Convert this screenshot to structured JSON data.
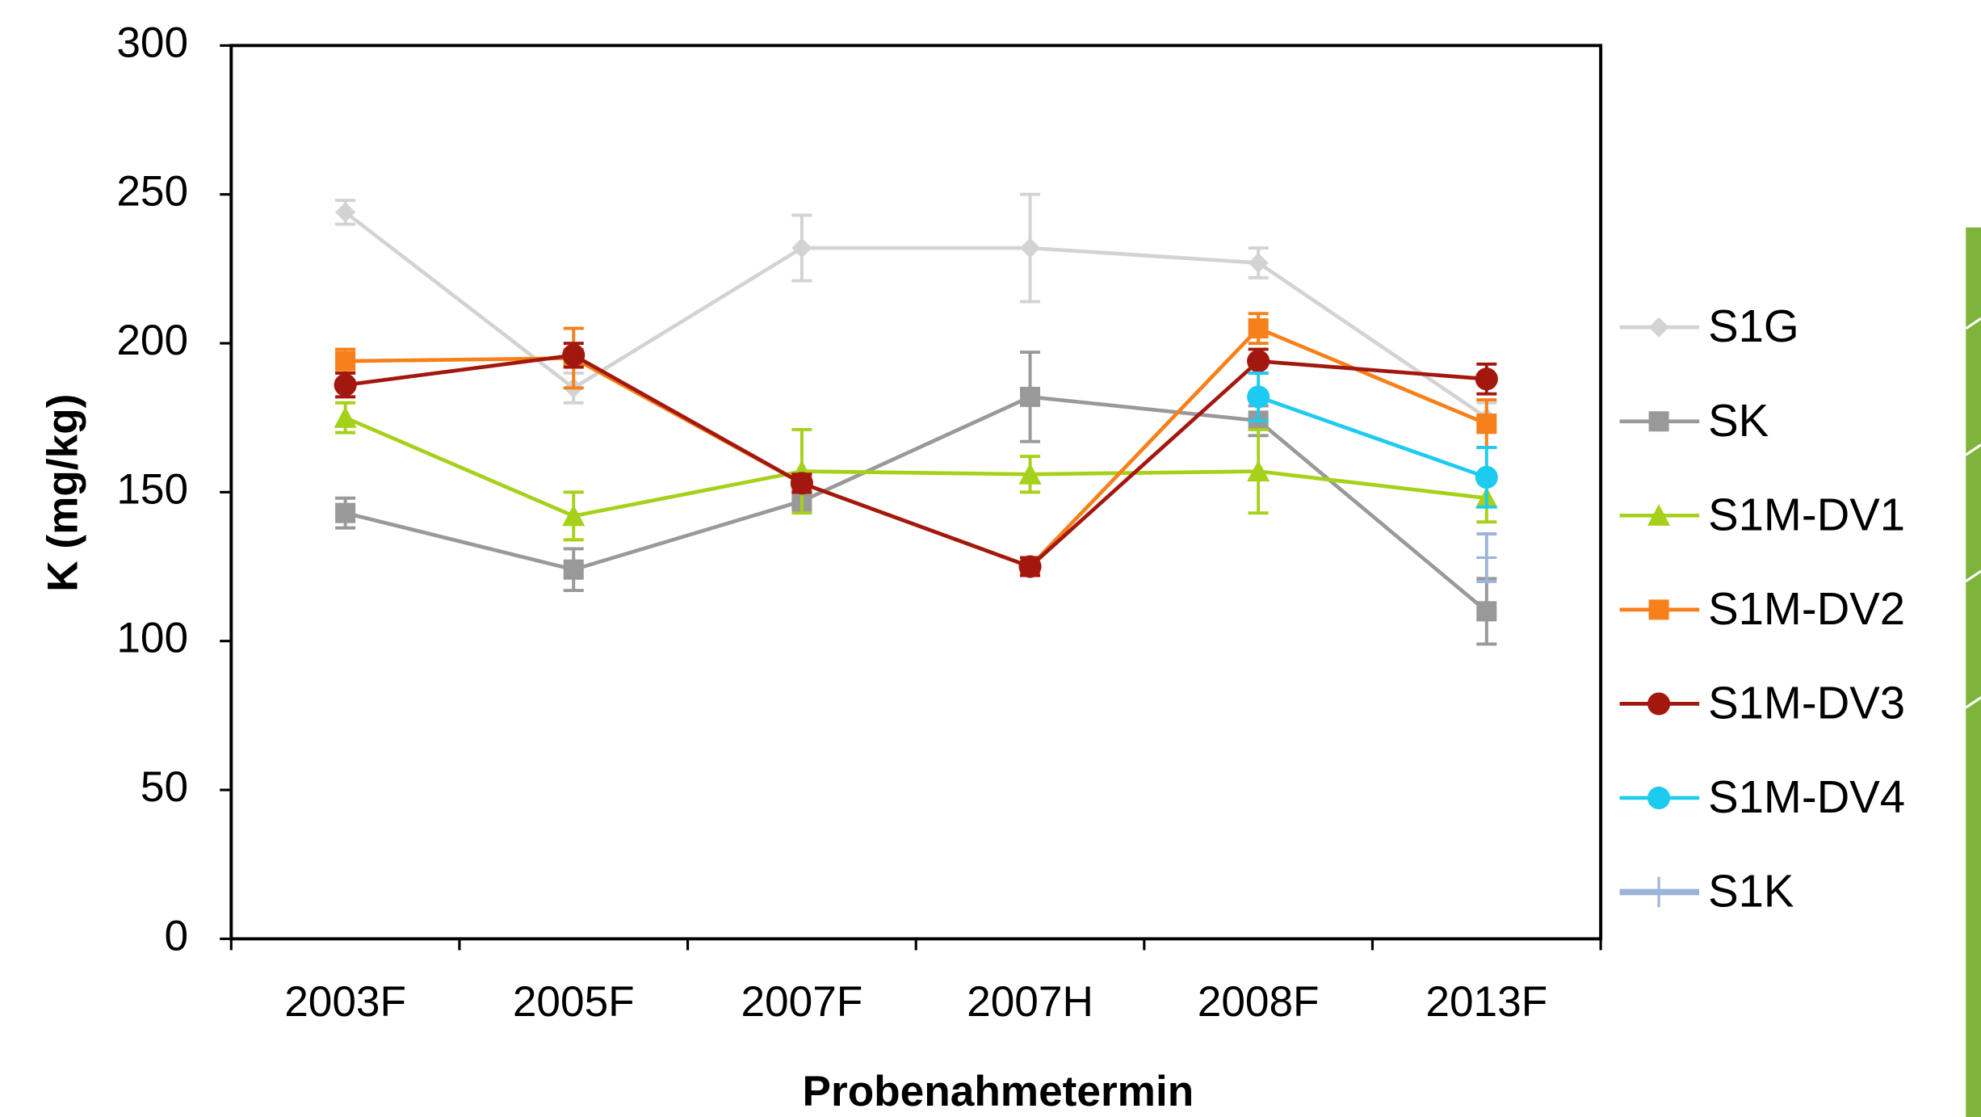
{
  "chart_data": {
    "type": "line",
    "x_label": "Probenahmetermin",
    "y_label": "K (mg/kg)",
    "categories": [
      "2003F",
      "2005F",
      "2007F",
      "2007H",
      "2008F",
      "2013F"
    ],
    "ylim": [
      0,
      300
    ],
    "yticks": [
      0,
      50,
      100,
      150,
      200,
      250,
      300
    ],
    "legend": "right",
    "series": [
      {
        "name": "S1G",
        "color": "#d3d3d3",
        "marker": "diamond",
        "values": [
          244,
          185,
          232,
          232,
          227,
          175
        ],
        "errors": [
          4,
          5,
          11,
          18,
          5,
          5
        ]
      },
      {
        "name": "SK",
        "color": "#999999",
        "marker": "square",
        "values": [
          143,
          124,
          147,
          182,
          174,
          110
        ],
        "errors": [
          5,
          7,
          3,
          15,
          5,
          11
        ]
      },
      {
        "name": "S1M-DV1",
        "color": "#a6d11b",
        "marker": "triangle",
        "values": [
          175,
          142,
          157,
          156,
          157,
          148
        ],
        "errors": [
          5,
          8,
          14,
          6,
          14,
          8
        ]
      },
      {
        "name": "S1M-DV2",
        "color": "#f7801a",
        "marker": "square",
        "values": [
          194,
          195,
          153,
          125,
          205,
          173
        ],
        "errors": [
          4,
          10,
          3,
          3,
          5,
          8
        ]
      },
      {
        "name": "S1M-DV3",
        "color": "#a3180e",
        "marker": "circle",
        "values": [
          186,
          196,
          153,
          125,
          194,
          188
        ],
        "errors": [
          4,
          4,
          3,
          3,
          4,
          5
        ]
      },
      {
        "name": "S1M-DV4",
        "color": "#1ecbf0",
        "marker": "circle",
        "values": [
          null,
          null,
          null,
          null,
          182,
          155
        ],
        "errors": [
          null,
          null,
          null,
          null,
          8,
          10
        ]
      },
      {
        "name": "S1K",
        "color": "#9db4d8",
        "marker": "plus",
        "values": [
          null,
          null,
          null,
          null,
          null,
          128
        ],
        "errors": [
          null,
          null,
          null,
          null,
          null,
          8
        ]
      }
    ]
  }
}
